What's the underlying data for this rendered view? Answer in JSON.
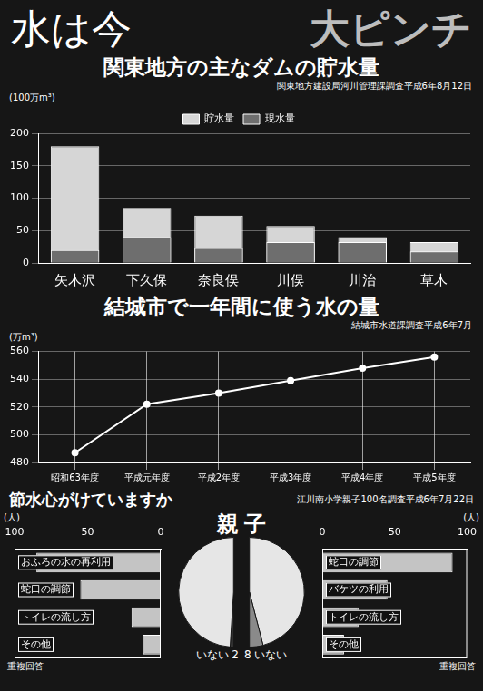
{
  "title": "水は今",
  "subtitle": "大ピンチ",
  "chart_data": [
    {
      "type": "bar",
      "title": "関東地方の主なダムの貯水量",
      "source": "関東地方建設局河川管理課調査平成6年8月12日",
      "y_label": "(100万m³)",
      "categories": [
        "矢木沢",
        "下久保",
        "奈良俣",
        "川俣",
        "川治",
        "草木"
      ],
      "series": [
        {
          "name": "貯水量",
          "color": "#d6d6d6",
          "values": [
            180,
            85,
            73,
            57,
            40,
            32
          ]
        },
        {
          "name": "現水量",
          "color": "#6e6e6e",
          "values": [
            20,
            40,
            23,
            32,
            32,
            18
          ]
        }
      ],
      "ylim": [
        0,
        200
      ],
      "yticks": [
        0,
        50,
        100,
        150,
        200
      ],
      "grid": true,
      "legend": "top"
    },
    {
      "type": "line",
      "title": "結城市で一年間に使う水の量",
      "source": "結城市水道課調査平成6年7月",
      "y_label": "(万m³)",
      "categories": [
        "昭和63年度",
        "平成元年度",
        "平成2年度",
        "平成3年度",
        "平成4年度",
        "平成5年度"
      ],
      "values": [
        487,
        522,
        530,
        539,
        548,
        556
      ],
      "color": "#ffffff",
      "marker": "circle",
      "ylim": [
        480,
        560
      ],
      "yticks": [
        480,
        500,
        520,
        540,
        560
      ],
      "grid": true
    },
    {
      "type": "bar",
      "orientation": "horizontal",
      "x_label": "(人)",
      "note": "重複回答",
      "categories": [
        "おふろの水の再利用",
        "蛇口の調節",
        "トイレの流し方",
        "その他"
      ],
      "values": [
        85,
        55,
        20,
        12
      ],
      "color": "#c4c4c4",
      "xlim": [
        0,
        100
      ],
      "xticks": [
        0,
        50,
        100
      ],
      "grid": false
    },
    {
      "type": "pie",
      "title": "親",
      "categories": [
        "いない",
        null
      ],
      "values": [
        2,
        98
      ],
      "value_labels": [
        "2",
        null
      ],
      "data_labels": true,
      "colors": [
        "#3a3a3a",
        "#e6e6e6"
      ]
    },
    {
      "type": "pie",
      "title": "子",
      "categories": [
        null,
        "いない"
      ],
      "values": [
        92,
        8
      ],
      "value_labels": [
        null,
        "8"
      ],
      "data_labels": true,
      "colors": [
        "#e6e6e6",
        "#8a8a8a"
      ]
    },
    {
      "type": "bar",
      "orientation": "horizontal",
      "x_label": "(人)",
      "note": "重複回答",
      "categories": [
        "蛇口の調節",
        "バケツの利用",
        "トイレの流し方",
        "その他"
      ],
      "values": [
        90,
        45,
        25,
        15
      ],
      "color": "#c4c4c4",
      "xlim": [
        0,
        100
      ],
      "xticks": [
        0,
        50,
        100
      ],
      "grid": false
    }
  ],
  "survey": {
    "title": "節水心がけていますか",
    "source": "江川南小学親子100名調査平成6年7月22日"
  }
}
